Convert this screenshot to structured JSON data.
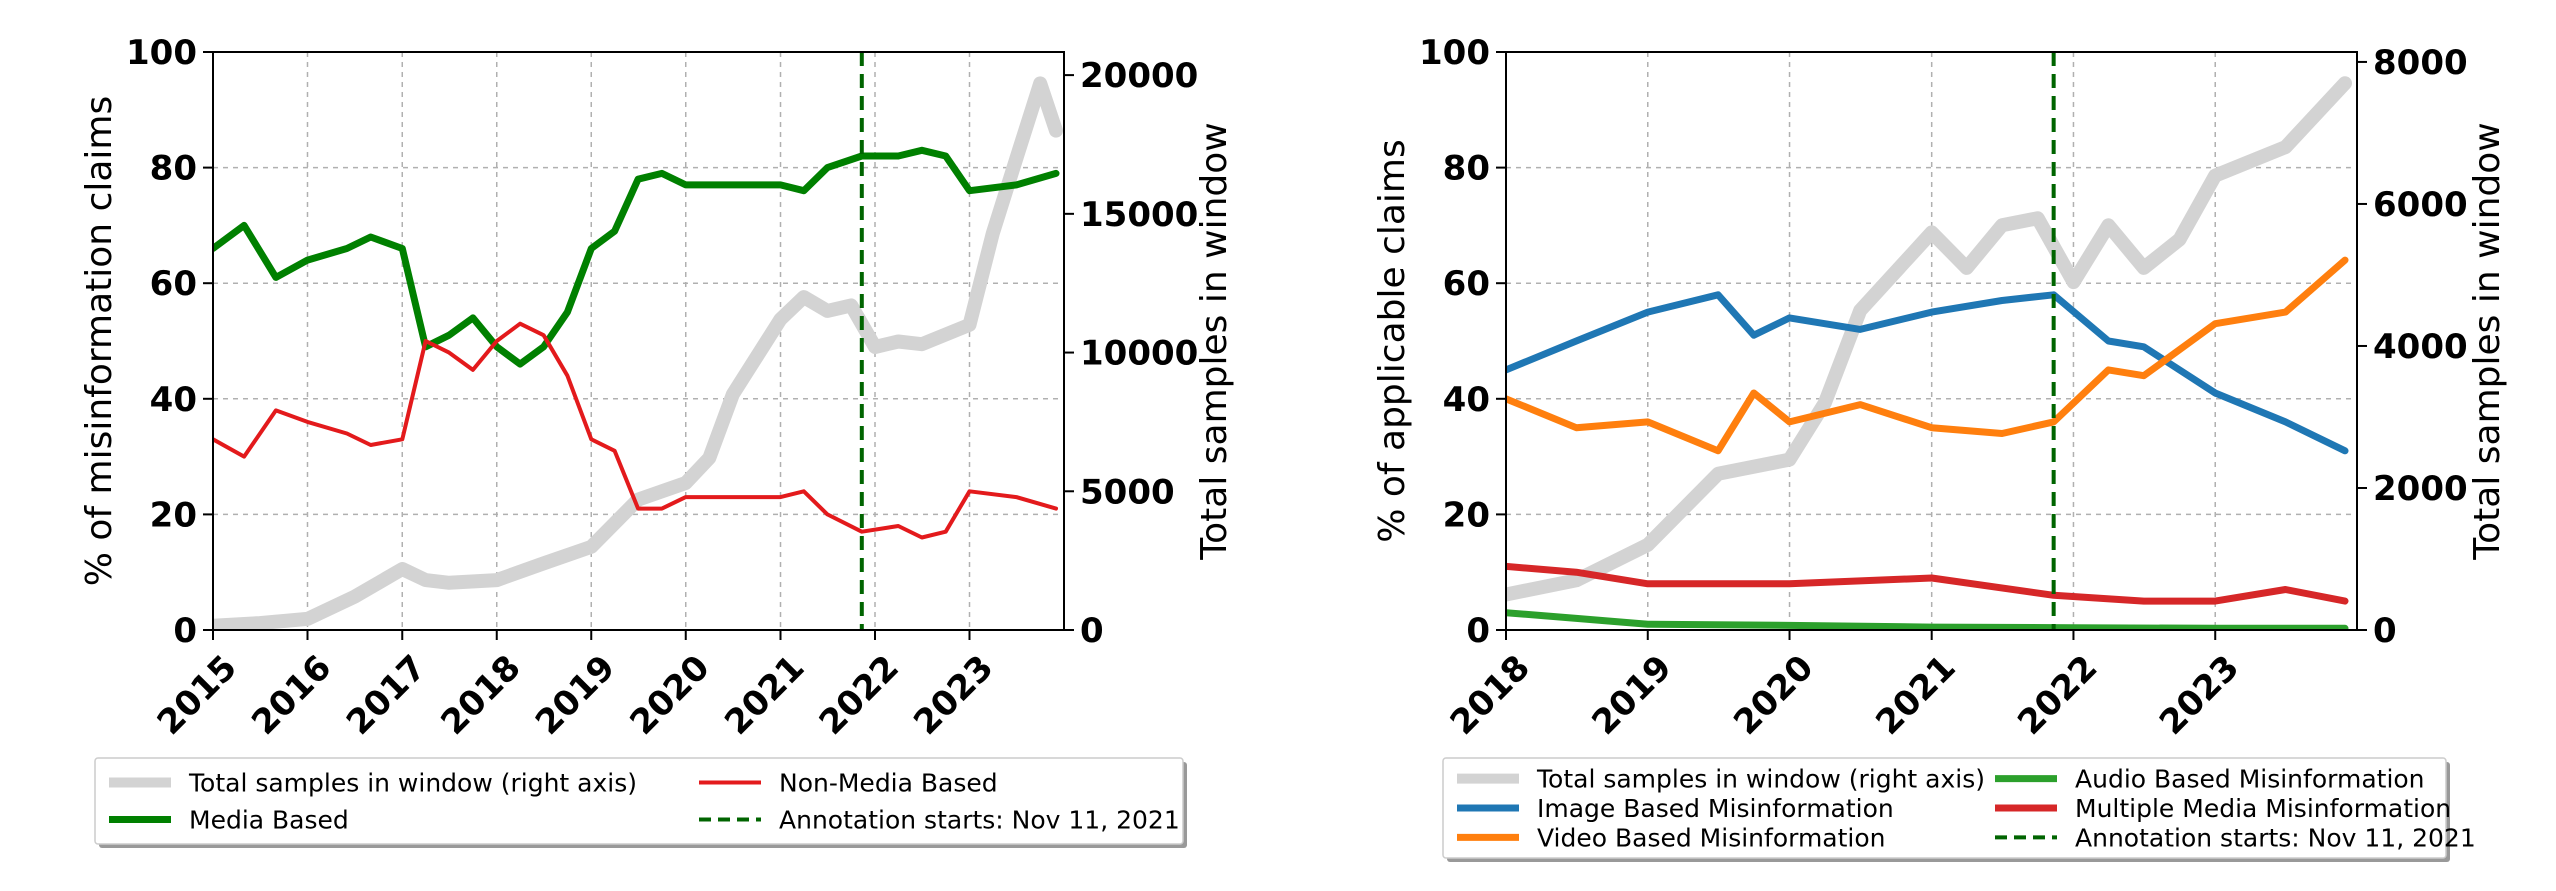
{
  "colors": {
    "total": "#d3d3d3",
    "media": "#008000",
    "nonmedia": "#e31a1c",
    "annotation": "#006400",
    "image": "#1f77b4",
    "video": "#ff7f0e",
    "audio": "#2ca02c",
    "multiple": "#d62728"
  },
  "chart_data": [
    {
      "type": "line",
      "xlabel": "",
      "ylabel": "% of misinformation claims",
      "y2label": "Total samples in window",
      "xlim": [
        "2015-01-01",
        "2024-01-01"
      ],
      "ylim": [
        0,
        100
      ],
      "y2lim": [
        0,
        20833
      ],
      "xticks": [
        "2015",
        "2016",
        "2017",
        "2018",
        "2019",
        "2020",
        "2021",
        "2022",
        "2023"
      ],
      "yticks": [
        "0",
        "20",
        "40",
        "60",
        "80",
        "100"
      ],
      "y2ticks": [
        "0",
        "5000",
        "10000",
        "15000",
        "20000"
      ],
      "grid": true,
      "legend_position": "below",
      "annotation": {
        "date": "2021-11-11",
        "label": "Annotation starts: Nov 11, 2021"
      },
      "series": [
        {
          "name": "Total samples in window (right axis)",
          "axis": "right",
          "color_key": "total",
          "width": 14,
          "points": [
            [
              "2015-01-01",
              150
            ],
            [
              "2015-07-01",
              250
            ],
            [
              "2016-01-01",
              400
            ],
            [
              "2016-07-01",
              1200
            ],
            [
              "2017-01-01",
              2200
            ],
            [
              "2017-04-01",
              1800
            ],
            [
              "2017-07-01",
              1700
            ],
            [
              "2018-01-01",
              1800
            ],
            [
              "2018-07-01",
              2400
            ],
            [
              "2019-01-01",
              3000
            ],
            [
              "2019-07-01",
              4700
            ],
            [
              "2020-01-01",
              5300
            ],
            [
              "2020-04-01",
              6200
            ],
            [
              "2020-07-01",
              8500
            ],
            [
              "2021-01-01",
              11200
            ],
            [
              "2021-04-01",
              12000
            ],
            [
              "2021-07-01",
              11500
            ],
            [
              "2021-10-01",
              11700
            ],
            [
              "2022-01-01",
              10200
            ],
            [
              "2022-04-01",
              10400
            ],
            [
              "2022-07-01",
              10300
            ],
            [
              "2023-01-01",
              11000
            ],
            [
              "2023-04-01",
              14300
            ],
            [
              "2023-07-01",
              17000
            ],
            [
              "2023-10-01",
              19700
            ],
            [
              "2023-12-01",
              18000
            ]
          ]
        },
        {
          "name": "Media Based",
          "axis": "left",
          "color_key": "media",
          "width": 7,
          "points": [
            [
              "2015-01-01",
              66
            ],
            [
              "2015-05-01",
              70
            ],
            [
              "2015-09-01",
              61
            ],
            [
              "2016-01-01",
              64
            ],
            [
              "2016-06-01",
              66
            ],
            [
              "2016-09-01",
              68
            ],
            [
              "2017-01-01",
              66
            ],
            [
              "2017-04-01",
              49
            ],
            [
              "2017-07-01",
              51
            ],
            [
              "2017-10-01",
              54
            ],
            [
              "2018-01-01",
              49
            ],
            [
              "2018-04-01",
              46
            ],
            [
              "2018-07-01",
              49
            ],
            [
              "2018-10-01",
              55
            ],
            [
              "2019-01-01",
              66
            ],
            [
              "2019-04-01",
              69
            ],
            [
              "2019-07-01",
              78
            ],
            [
              "2019-10-01",
              79
            ],
            [
              "2020-01-01",
              77
            ],
            [
              "2020-07-01",
              77
            ],
            [
              "2021-01-01",
              77
            ],
            [
              "2021-04-01",
              76
            ],
            [
              "2021-07-01",
              80
            ],
            [
              "2021-11-11",
              82
            ],
            [
              "2022-04-01",
              82
            ],
            [
              "2022-07-01",
              83
            ],
            [
              "2022-10-01",
              82
            ],
            [
              "2023-01-01",
              76
            ],
            [
              "2023-07-01",
              77
            ],
            [
              "2023-12-01",
              79
            ]
          ]
        },
        {
          "name": "Non-Media Based",
          "axis": "left",
          "color_key": "nonmedia",
          "width": 4,
          "points": [
            [
              "2015-01-01",
              33
            ],
            [
              "2015-05-01",
              30
            ],
            [
              "2015-09-01",
              38
            ],
            [
              "2016-01-01",
              36
            ],
            [
              "2016-06-01",
              34
            ],
            [
              "2016-09-01",
              32
            ],
            [
              "2017-01-01",
              33
            ],
            [
              "2017-04-01",
              50
            ],
            [
              "2017-07-01",
              48
            ],
            [
              "2017-10-01",
              45
            ],
            [
              "2018-01-01",
              50
            ],
            [
              "2018-04-01",
              53
            ],
            [
              "2018-07-01",
              51
            ],
            [
              "2018-10-01",
              44
            ],
            [
              "2019-01-01",
              33
            ],
            [
              "2019-04-01",
              31
            ],
            [
              "2019-07-01",
              21
            ],
            [
              "2019-10-01",
              21
            ],
            [
              "2020-01-01",
              23
            ],
            [
              "2020-07-01",
              23
            ],
            [
              "2021-01-01",
              23
            ],
            [
              "2021-04-01",
              24
            ],
            [
              "2021-07-01",
              20
            ],
            [
              "2021-11-11",
              17
            ],
            [
              "2022-04-01",
              18
            ],
            [
              "2022-07-01",
              16
            ],
            [
              "2022-10-01",
              17
            ],
            [
              "2023-01-01",
              24
            ],
            [
              "2023-07-01",
              23
            ],
            [
              "2023-12-01",
              21
            ]
          ]
        },
        {
          "name": "Annotation starts: Nov 11, 2021",
          "axis": "left",
          "color_key": "annotation",
          "width": 4,
          "dashed": true,
          "vline": "2021-11-11",
          "points": []
        }
      ]
    },
    {
      "type": "line",
      "xlabel": "",
      "ylabel": "% of applicable claims",
      "y2label": "Total samples in window",
      "xlim": [
        "2018-01-01",
        "2024-01-01"
      ],
      "ylim": [
        0,
        100
      ],
      "y2lim": [
        0,
        8140
      ],
      "xticks": [
        "2018",
        "2019",
        "2020",
        "2021",
        "2022",
        "2023"
      ],
      "yticks": [
        "0",
        "20",
        "40",
        "60",
        "80",
        "100"
      ],
      "y2ticks": [
        "0",
        "2000",
        "4000",
        "6000",
        "8000"
      ],
      "grid": true,
      "legend_position": "below",
      "annotation": {
        "date": "2021-11-11",
        "label": "Annotation starts: Nov 11, 2021"
      },
      "series": [
        {
          "name": "Total samples in window (right axis)",
          "axis": "right",
          "color_key": "total",
          "width": 14,
          "points": [
            [
              "2018-01-01",
              500
            ],
            [
              "2018-07-01",
              700
            ],
            [
              "2019-01-01",
              1200
            ],
            [
              "2019-07-01",
              2200
            ],
            [
              "2020-01-01",
              2400
            ],
            [
              "2020-04-01",
              3200
            ],
            [
              "2020-07-01",
              4500
            ],
            [
              "2021-01-01",
              5600
            ],
            [
              "2021-04-01",
              5100
            ],
            [
              "2021-07-01",
              5700
            ],
            [
              "2021-10-01",
              5800
            ],
            [
              "2022-01-01",
              4900
            ],
            [
              "2022-04-01",
              5700
            ],
            [
              "2022-07-01",
              5100
            ],
            [
              "2022-10-01",
              5500
            ],
            [
              "2023-01-01",
              6400
            ],
            [
              "2023-07-01",
              6800
            ],
            [
              "2023-12-01",
              7700
            ]
          ]
        },
        {
          "name": "Image Based Misinformation",
          "axis": "left",
          "color_key": "image",
          "width": 7,
          "points": [
            [
              "2018-01-01",
              45
            ],
            [
              "2018-07-01",
              50
            ],
            [
              "2019-01-01",
              55
            ],
            [
              "2019-07-01",
              58
            ],
            [
              "2019-10-01",
              51
            ],
            [
              "2020-01-01",
              54
            ],
            [
              "2020-07-01",
              52
            ],
            [
              "2021-01-01",
              55
            ],
            [
              "2021-07-01",
              57
            ],
            [
              "2021-11-11",
              58
            ],
            [
              "2022-04-01",
              50
            ],
            [
              "2022-07-01",
              49
            ],
            [
              "2023-01-01",
              41
            ],
            [
              "2023-07-01",
              36
            ],
            [
              "2023-12-01",
              31
            ]
          ]
        },
        {
          "name": "Video Based Misinformation",
          "axis": "left",
          "color_key": "video",
          "width": 7,
          "points": [
            [
              "2018-01-01",
              40
            ],
            [
              "2018-07-01",
              35
            ],
            [
              "2019-01-01",
              36
            ],
            [
              "2019-07-01",
              31
            ],
            [
              "2019-10-01",
              41
            ],
            [
              "2020-01-01",
              36
            ],
            [
              "2020-07-01",
              39
            ],
            [
              "2021-01-01",
              35
            ],
            [
              "2021-07-01",
              34
            ],
            [
              "2021-11-11",
              36
            ],
            [
              "2022-04-01",
              45
            ],
            [
              "2022-07-01",
              44
            ],
            [
              "2023-01-01",
              53
            ],
            [
              "2023-07-01",
              55
            ],
            [
              "2023-12-01",
              64
            ]
          ]
        },
        {
          "name": "Audio Based Misinformation",
          "axis": "left",
          "color_key": "audio",
          "width": 7,
          "points": [
            [
              "2018-01-01",
              3
            ],
            [
              "2018-07-01",
              2
            ],
            [
              "2019-01-01",
              1
            ],
            [
              "2020-01-01",
              0.8
            ],
            [
              "2021-01-01",
              0.5
            ],
            [
              "2022-01-01",
              0.4
            ],
            [
              "2023-01-01",
              0.3
            ],
            [
              "2023-12-01",
              0.3
            ]
          ]
        },
        {
          "name": "Multiple Media Misinformation",
          "axis": "left",
          "color_key": "multiple",
          "width": 7,
          "points": [
            [
              "2018-01-01",
              11
            ],
            [
              "2018-07-01",
              10
            ],
            [
              "2019-01-01",
              8
            ],
            [
              "2019-07-01",
              8
            ],
            [
              "2020-01-01",
              8
            ],
            [
              "2021-01-01",
              9
            ],
            [
              "2021-11-11",
              6
            ],
            [
              "2022-07-01",
              5
            ],
            [
              "2023-01-01",
              5
            ],
            [
              "2023-07-01",
              7
            ],
            [
              "2023-12-01",
              5
            ]
          ]
        },
        {
          "name": "Annotation starts: Nov 11, 2021",
          "axis": "left",
          "color_key": "annotation",
          "width": 4,
          "dashed": true,
          "vline": "2021-11-11",
          "points": []
        }
      ]
    }
  ]
}
